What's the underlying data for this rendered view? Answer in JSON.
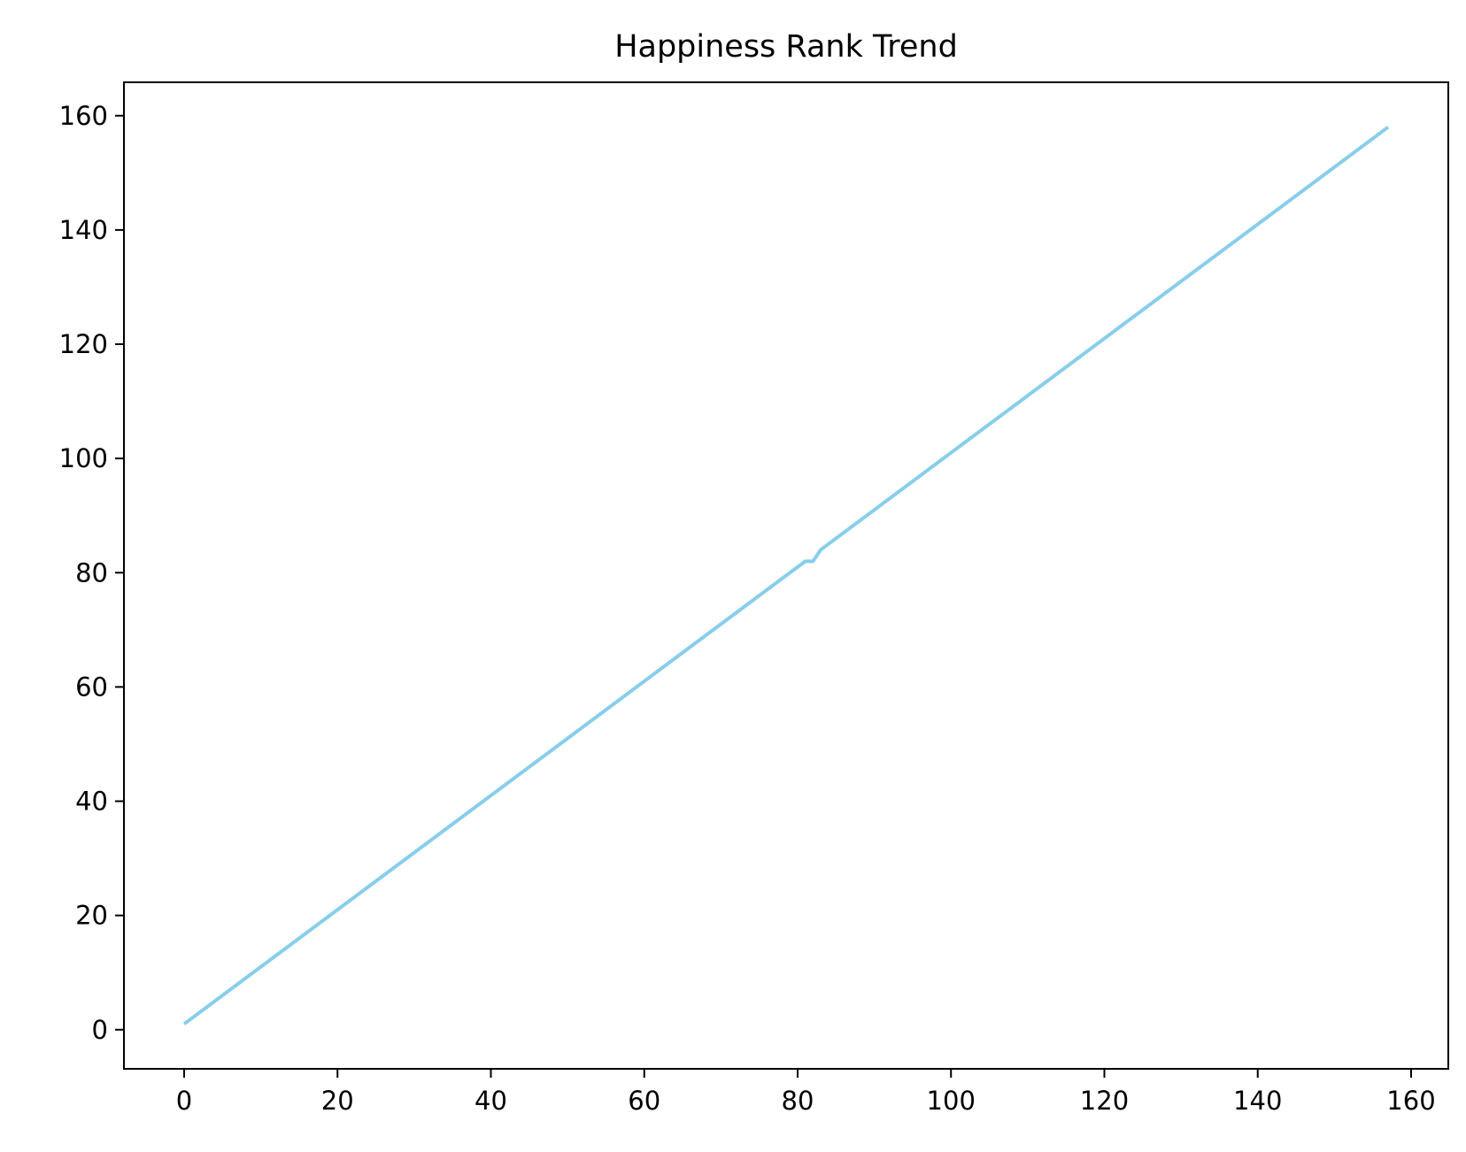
{
  "chart_data": {
    "type": "line",
    "title": "Happiness Rank Trend",
    "xlabel": "",
    "ylabel": "",
    "xlim": [
      -7.85,
      164.85
    ],
    "ylim": [
      -6.85,
      165.85
    ],
    "grid": false,
    "legend": "none",
    "x_ticks": [
      0,
      20,
      40,
      60,
      80,
      100,
      120,
      140,
      160
    ],
    "y_ticks": [
      0,
      20,
      40,
      60,
      80,
      100,
      120,
      140,
      160
    ],
    "series": [
      {
        "color": "#87CEEB",
        "points": [
          [
            0,
            1
          ],
          [
            81,
            82
          ],
          [
            82,
            82
          ],
          [
            83,
            84
          ],
          [
            157,
            158
          ]
        ]
      }
    ]
  }
}
